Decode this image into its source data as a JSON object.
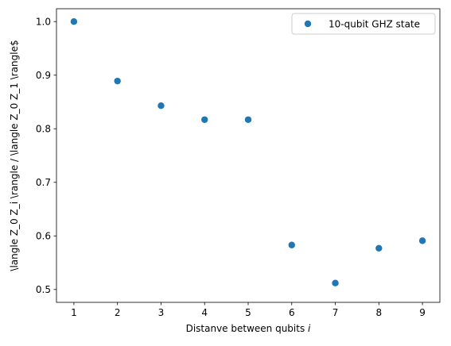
{
  "chart_data": {
    "type": "scatter",
    "title": "",
    "xlabel": "Distanve between qubits ",
    "xlabel_italic": "i",
    "ylabel": "\\langle Z_0 Z_i \\rangle / \\langle Z_0 Z_1 \\rangle$",
    "xlim": [
      0.6,
      9.4
    ],
    "ylim": [
      0.476,
      1.024
    ],
    "xticks": [
      1,
      2,
      3,
      4,
      5,
      6,
      7,
      8,
      9
    ],
    "yticks": [
      0.5,
      0.6,
      0.7,
      0.8,
      0.9,
      1.0
    ],
    "ytick_labels": [
      "0.5",
      "0.6",
      "0.7",
      "0.8",
      "0.9",
      "1.0"
    ],
    "grid": false,
    "legend_position": "top-right",
    "series": [
      {
        "name": "10-qubit GHZ state",
        "color": "#1f77b4",
        "marker": "circle",
        "x": [
          1,
          2,
          3,
          4,
          5,
          6,
          7,
          8,
          9
        ],
        "y": [
          1.0,
          0.889,
          0.843,
          0.817,
          0.817,
          0.583,
          0.512,
          0.577,
          0.591
        ]
      }
    ]
  }
}
